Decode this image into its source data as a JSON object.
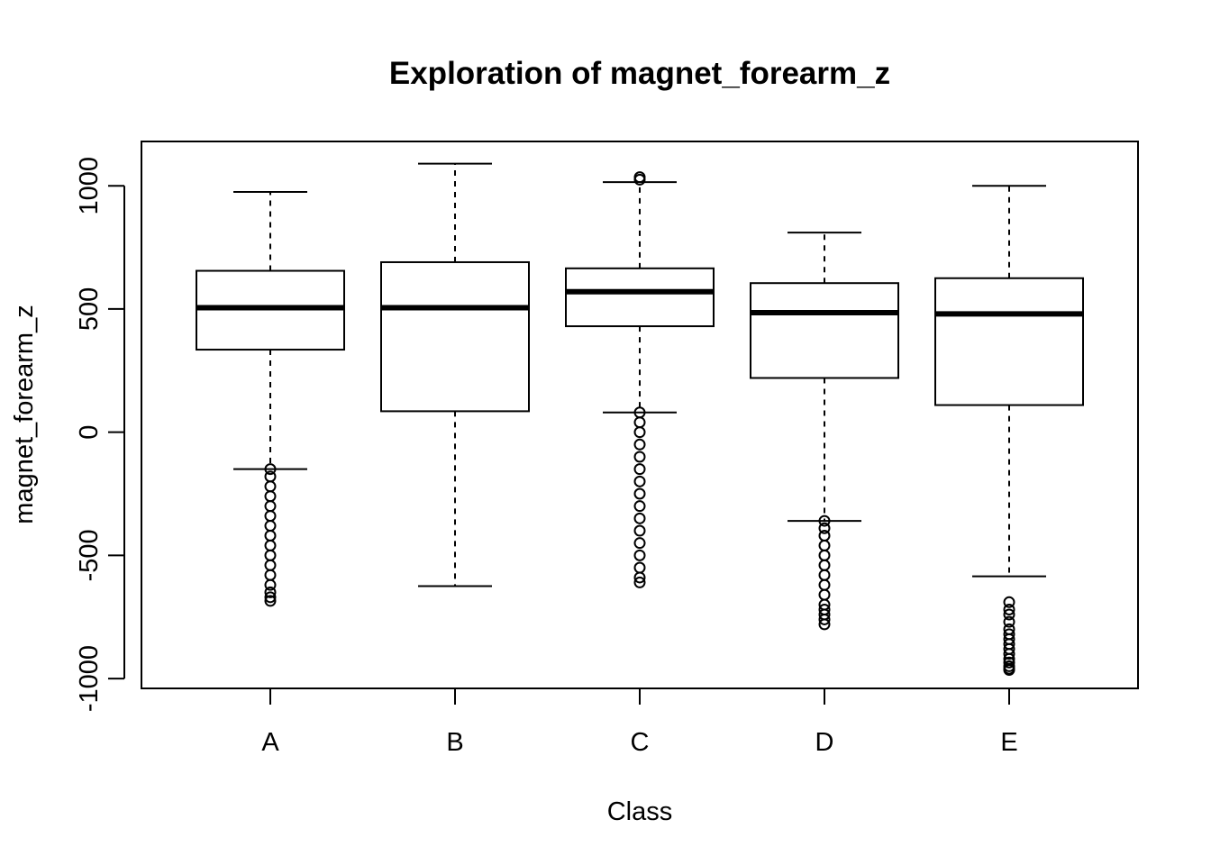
{
  "chart_data": {
    "type": "boxplot",
    "title": "Exploration of  magnet_forearm_z",
    "xlabel": "Class",
    "ylabel": "magnet_forearm_z",
    "ylim": [
      -1040,
      1180
    ],
    "y_ticks": [
      -1000,
      -500,
      0,
      500,
      1000
    ],
    "categories": [
      "A",
      "B",
      "C",
      "D",
      "E"
    ],
    "boxes": [
      {
        "category": "A",
        "whisker_low": -150,
        "q1": 335,
        "median": 505,
        "q3": 655,
        "whisker_high": 975,
        "outliers": [
          -150,
          -180,
          -220,
          -260,
          -300,
          -340,
          -380,
          -420,
          -460,
          -500,
          -540,
          -580,
          -620,
          -650,
          -670,
          -685
        ]
      },
      {
        "category": "B",
        "whisker_low": -625,
        "q1": 85,
        "median": 505,
        "q3": 690,
        "whisker_high": 1090,
        "outliers": []
      },
      {
        "category": "C",
        "whisker_low": 80,
        "q1": 430,
        "median": 570,
        "q3": 665,
        "whisker_high": 1015,
        "outliers": [
          1025,
          1035,
          80,
          40,
          0,
          -50,
          -100,
          -150,
          -200,
          -250,
          -300,
          -350,
          -400,
          -450,
          -500,
          -550,
          -590,
          -610
        ]
      },
      {
        "category": "D",
        "whisker_low": -360,
        "q1": 220,
        "median": 485,
        "q3": 605,
        "whisker_high": 810,
        "outliers": [
          -360,
          -390,
          -420,
          -460,
          -500,
          -540,
          -580,
          -620,
          -660,
          -700,
          -720,
          -740,
          -760,
          -780
        ]
      },
      {
        "category": "E",
        "whisker_low": -585,
        "q1": 110,
        "median": 480,
        "q3": 625,
        "whisker_high": 1000,
        "outliers": [
          -690,
          -720,
          -740,
          -770,
          -800,
          -820,
          -840,
          -860,
          -880,
          -900,
          -920,
          -935,
          -950,
          -960,
          -965
        ]
      }
    ]
  }
}
